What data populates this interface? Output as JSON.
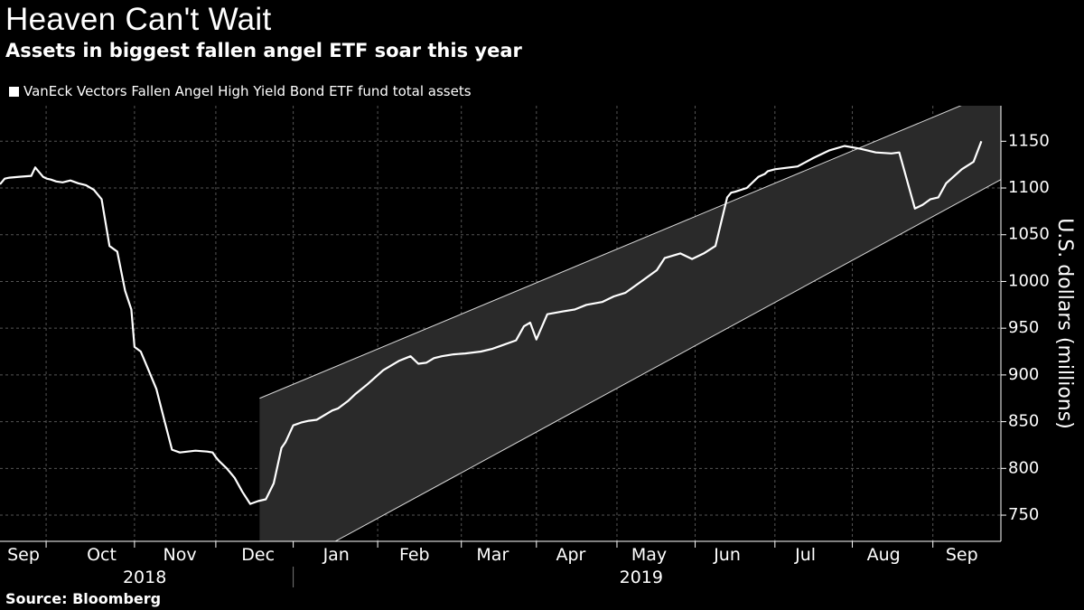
{
  "header": {
    "title": "Heaven Can't Wait",
    "subtitle": "Assets in biggest fallen angel ETF soar this year"
  },
  "source": "Source: Bloomberg",
  "colors": {
    "background": "#000000",
    "line": "#ffffff",
    "grid": "#555555",
    "channel_fill": "#2a2a2a"
  },
  "chart_data": {
    "type": "line",
    "title": "Heaven Can't Wait",
    "subtitle": "Assets in biggest fallen angel ETF soar this year",
    "legend": "VanEck Vectors Fallen Angel High Yield Bond ETF fund total assets",
    "ylabel": "U.S. dollars (millions)",
    "xlabel": "",
    "ylim": [
      722,
      1188
    ],
    "xlim": [
      0,
      12.8
    ],
    "yticks": [
      750,
      800,
      850,
      900,
      950,
      1000,
      1050,
      1100,
      1150
    ],
    "yaxis_position": "right",
    "grid": true,
    "x_ticks": [
      {
        "label": "Sep",
        "pos": 0.3
      },
      {
        "label": "Oct",
        "pos": 1.3
      },
      {
        "label": "Nov",
        "pos": 2.3
      },
      {
        "label": "Dec",
        "pos": 3.3
      },
      {
        "label": "Jan",
        "pos": 4.3
      },
      {
        "label": "Feb",
        "pos": 5.3
      },
      {
        "label": "Mar",
        "pos": 6.3
      },
      {
        "label": "Apr",
        "pos": 7.3
      },
      {
        "label": "May",
        "pos": 8.3
      },
      {
        "label": "Jun",
        "pos": 9.3
      },
      {
        "label": "Jul",
        "pos": 10.3
      },
      {
        "label": "Aug",
        "pos": 11.3
      },
      {
        "label": "Sep",
        "pos": 12.3
      }
    ],
    "month_boundaries": [
      0.59,
      1.72,
      2.76,
      3.75,
      4.83,
      5.9,
      6.86,
      7.89,
      8.89,
      9.91,
      10.9,
      11.93
    ],
    "years": [
      {
        "label": "2018",
        "center": 1.85
      },
      {
        "label": "2019",
        "center": 8.2
      }
    ],
    "year_divider": 3.75,
    "channel": {
      "x_start": 3.32,
      "x_end": 12.8,
      "upper": [
        875,
        1206
      ],
      "lower": [
        678,
        1109
      ]
    },
    "series": [
      {
        "name": "VanEck Vectors Fallen Angel High Yield Bond ETF fund total assets",
        "x": [
          0.0,
          0.06,
          0.12,
          0.25,
          0.4,
          0.45,
          0.55,
          0.6,
          0.65,
          0.72,
          0.8,
          0.9,
          1.0,
          1.1,
          1.2,
          1.3,
          1.4,
          1.5,
          1.6,
          1.68,
          1.72,
          1.8,
          1.9,
          2.0,
          2.1,
          2.2,
          2.3,
          2.4,
          2.5,
          2.65,
          2.72,
          2.76,
          2.8,
          2.9,
          3.0,
          3.1,
          3.2,
          3.3,
          3.4,
          3.5,
          3.6,
          3.65,
          3.75,
          3.85,
          3.95,
          4.05,
          4.25,
          4.32,
          4.45,
          4.55,
          4.7,
          4.9,
          5.1,
          5.25,
          5.35,
          5.45,
          5.55,
          5.65,
          5.8,
          5.95,
          6.15,
          6.3,
          6.4,
          6.6,
          6.7,
          6.78,
          6.86,
          7.0,
          7.2,
          7.35,
          7.5,
          7.7,
          7.85,
          8.0,
          8.2,
          8.4,
          8.5,
          8.7,
          8.85,
          9.0,
          9.15,
          9.3,
          9.35,
          9.4,
          9.55,
          9.7,
          9.78,
          9.82,
          9.91,
          10.0,
          10.2,
          10.4,
          10.6,
          10.8,
          11.0,
          11.2,
          11.4,
          11.5,
          11.7,
          11.8,
          11.9,
          12.0,
          12.1,
          12.3,
          12.45,
          12.55
        ],
        "values": [
          1104,
          1110,
          1111,
          1112,
          1113,
          1122,
          1112,
          1110,
          1109,
          1107,
          1106,
          1108,
          1105,
          1103,
          1098,
          1088,
          1038,
          1032,
          990,
          970,
          930,
          925,
          905,
          885,
          852,
          820,
          817,
          818,
          819,
          818,
          817,
          812,
          808,
          800,
          790,
          775,
          762,
          765,
          767,
          784,
          822,
          828,
          846,
          849,
          851,
          852,
          862,
          864,
          872,
          880,
          890,
          905,
          915,
          920,
          912,
          913,
          918,
          920,
          922,
          923,
          925,
          928,
          931,
          937,
          952,
          956,
          938,
          965,
          968,
          970,
          975,
          978,
          984,
          988,
          1000,
          1012,
          1025,
          1030,
          1024,
          1030,
          1038,
          1090,
          1095,
          1096,
          1100,
          1112,
          1115,
          1118,
          1120,
          1121,
          1123,
          1132,
          1140,
          1145,
          1142,
          1138,
          1137,
          1138,
          1078,
          1082,
          1088,
          1090,
          1105,
          1120,
          1128,
          1150
        ]
      }
    ]
  }
}
